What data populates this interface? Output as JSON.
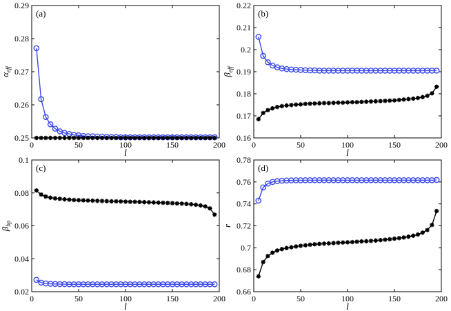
{
  "chart_data": [
    {
      "type": "line",
      "label": "(a)",
      "ylabel": "α_eff",
      "xlabel": "l",
      "xlim": [
        0,
        200
      ],
      "ylim": [
        0.25,
        0.29
      ],
      "xticks": [
        "0",
        "50",
        "100",
        "150",
        "200"
      ],
      "yticks": [
        "0.25",
        "0.26",
        "0.27",
        "0.28",
        "0.29"
      ],
      "series": [
        {
          "name": "blue",
          "color": "#3a48e8",
          "marker": "circle",
          "x_start": 5,
          "x_step": 5,
          "values": [
            0.2771,
            0.2617,
            0.2563,
            0.2541,
            0.2528,
            0.252,
            0.2515,
            0.2512,
            0.2509,
            0.2508,
            0.2506,
            0.2505,
            0.2505,
            0.2504,
            0.2504,
            0.2503,
            0.2503,
            0.2503,
            0.2502,
            0.2502,
            0.2502,
            0.2502,
            0.2502,
            0.2502,
            0.2502,
            0.2502,
            0.2502,
            0.2502,
            0.2502,
            0.2502,
            0.2502,
            0.2502,
            0.2502,
            0.2502,
            0.2502,
            0.2502,
            0.2502,
            0.2502,
            0.2502
          ]
        },
        {
          "name": "black",
          "color": "#000000",
          "marker": "star",
          "x_start": 5,
          "x_step": 5,
          "values": [
            0.25,
            0.25,
            0.25,
            0.25,
            0.25,
            0.25,
            0.25,
            0.25,
            0.25,
            0.25,
            0.25,
            0.25,
            0.25,
            0.25,
            0.25,
            0.25,
            0.25,
            0.25,
            0.25,
            0.25,
            0.25,
            0.25,
            0.25,
            0.25,
            0.25,
            0.25,
            0.25,
            0.25,
            0.25,
            0.25,
            0.25,
            0.25,
            0.25,
            0.25,
            0.25,
            0.25,
            0.25,
            0.25,
            0.25
          ]
        }
      ]
    },
    {
      "type": "line",
      "label": "(b)",
      "ylabel": "β_eff",
      "xlabel": "l",
      "xlim": [
        0,
        200
      ],
      "ylim": [
        0.16,
        0.22
      ],
      "xticks": [
        "0",
        "50",
        "100",
        "150",
        "200"
      ],
      "yticks": [
        "0.16",
        "0.17",
        "0.18",
        "0.19",
        "0.2",
        "0.21",
        "0.22"
      ],
      "series": [
        {
          "name": "blue",
          "color": "#3a48e8",
          "marker": "circle",
          "x_start": 5,
          "x_step": 5,
          "values": [
            0.2058,
            0.1972,
            0.1943,
            0.1928,
            0.192,
            0.1915,
            0.1912,
            0.191,
            0.1909,
            0.1908,
            0.1907,
            0.1906,
            0.1906,
            0.1905,
            0.1905,
            0.1905,
            0.1905,
            0.1905,
            0.1905,
            0.1905,
            0.1905,
            0.1905,
            0.1905,
            0.1905,
            0.1905,
            0.1905,
            0.1905,
            0.1905,
            0.1905,
            0.1905,
            0.1905,
            0.1905,
            0.1905,
            0.1905,
            0.1905,
            0.1905,
            0.1905,
            0.1905,
            0.1905
          ]
        },
        {
          "name": "black",
          "color": "#000000",
          "marker": "star",
          "x_start": 5,
          "x_step": 5,
          "values": [
            0.1685,
            0.1713,
            0.1726,
            0.1734,
            0.174,
            0.1744,
            0.1747,
            0.1749,
            0.1751,
            0.1752,
            0.1754,
            0.1755,
            0.1756,
            0.1757,
            0.1758,
            0.1758,
            0.1759,
            0.176,
            0.176,
            0.1761,
            0.1762,
            0.1762,
            0.1763,
            0.1764,
            0.1765,
            0.1766,
            0.1767,
            0.1768,
            0.1769,
            0.177,
            0.1772,
            0.1774,
            0.1776,
            0.1778,
            0.1781,
            0.1785,
            0.1791,
            0.1802,
            0.1832
          ]
        }
      ]
    },
    {
      "type": "line",
      "label": "(c)",
      "ylabel": "β_bp",
      "xlabel": "l",
      "xlim": [
        0,
        200
      ],
      "ylim": [
        0.02,
        0.1
      ],
      "xticks": [
        "0",
        "50",
        "100",
        "150",
        "200"
      ],
      "yticks": [
        "0.02",
        "0.04",
        "0.06",
        "0.08",
        "0.1"
      ],
      "series": [
        {
          "name": "blue",
          "color": "#3a48e8",
          "marker": "circle",
          "x_start": 5,
          "x_step": 5,
          "values": [
            0.0272,
            0.0255,
            0.025,
            0.0248,
            0.0247,
            0.0246,
            0.0246,
            0.0245,
            0.0245,
            0.0245,
            0.0245,
            0.0245,
            0.0245,
            0.0245,
            0.0245,
            0.0245,
            0.0245,
            0.0245,
            0.0245,
            0.0245,
            0.0245,
            0.0245,
            0.0245,
            0.0245,
            0.0245,
            0.0245,
            0.0245,
            0.0245,
            0.0245,
            0.0245,
            0.0245,
            0.0245,
            0.0245,
            0.0245,
            0.0245,
            0.0245,
            0.0245,
            0.0245,
            0.0245
          ]
        },
        {
          "name": "black",
          "color": "#000000",
          "marker": "star",
          "x_start": 5,
          "x_step": 5,
          "values": [
            0.0815,
            0.079,
            0.0778,
            0.0771,
            0.0767,
            0.0764,
            0.0761,
            0.0759,
            0.0757,
            0.0756,
            0.0755,
            0.0754,
            0.0753,
            0.0752,
            0.0751,
            0.075,
            0.0749,
            0.0749,
            0.0748,
            0.0747,
            0.0746,
            0.0746,
            0.0745,
            0.0744,
            0.0743,
            0.0742,
            0.0741,
            0.074,
            0.0739,
            0.0738,
            0.0736,
            0.0735,
            0.0733,
            0.0731,
            0.0728,
            0.0724,
            0.0718,
            0.0706,
            0.0668
          ]
        }
      ]
    },
    {
      "type": "line",
      "label": "(d)",
      "ylabel": "r",
      "xlabel": "l",
      "xlim": [
        0,
        200
      ],
      "ylim": [
        0.66,
        0.78
      ],
      "xticks": [
        "0",
        "50",
        "100",
        "150",
        "200"
      ],
      "yticks": [
        "0.66",
        "0.68",
        "0.7",
        "0.72",
        "0.74",
        "0.76",
        "0.78"
      ],
      "series": [
        {
          "name": "blue",
          "color": "#3a48e8",
          "marker": "circle",
          "x_start": 5,
          "x_step": 5,
          "values": [
            0.743,
            0.755,
            0.7585,
            0.76,
            0.7607,
            0.7611,
            0.7613,
            0.7614,
            0.7615,
            0.7615,
            0.7616,
            0.7616,
            0.7616,
            0.7616,
            0.7616,
            0.7616,
            0.7616,
            0.7616,
            0.7616,
            0.7616,
            0.7616,
            0.7616,
            0.7616,
            0.7616,
            0.7616,
            0.7616,
            0.7616,
            0.7616,
            0.7616,
            0.7616,
            0.7616,
            0.7616,
            0.7616,
            0.7616,
            0.7616,
            0.7616,
            0.7616,
            0.7616,
            0.7618
          ]
        },
        {
          "name": "black",
          "color": "#000000",
          "marker": "star",
          "x_start": 5,
          "x_step": 5,
          "values": [
            0.674,
            0.687,
            0.6925,
            0.6955,
            0.6975,
            0.6988,
            0.6998,
            0.7005,
            0.7012,
            0.7018,
            0.7023,
            0.7028,
            0.7032,
            0.7035,
            0.7038,
            0.704,
            0.7043,
            0.7046,
            0.7048,
            0.705,
            0.7052,
            0.7055,
            0.7058,
            0.706,
            0.7063,
            0.7066,
            0.707,
            0.7074,
            0.7078,
            0.7083,
            0.7088,
            0.7094,
            0.7101,
            0.711,
            0.7121,
            0.7138,
            0.7162,
            0.7208,
            0.7335
          ]
        }
      ]
    }
  ]
}
